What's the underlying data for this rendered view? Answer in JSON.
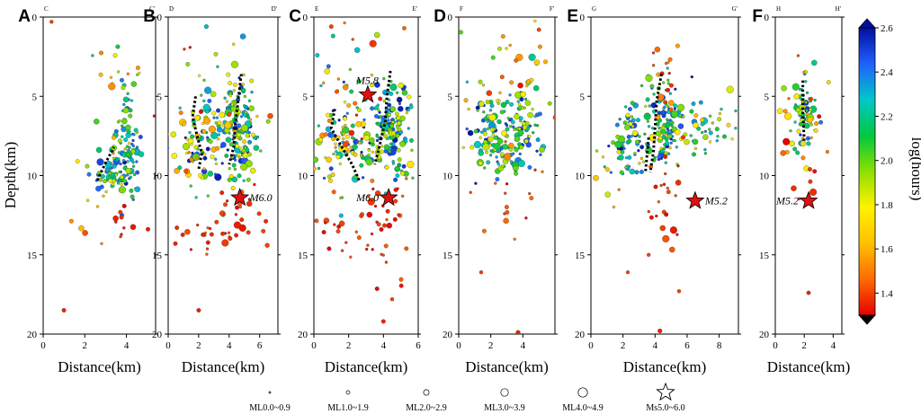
{
  "chart_data": {
    "type": "scatter",
    "description_units": "distance (km) vs depth (km), colour = log(hours)",
    "ylabel": "Depth(km)",
    "xlabel": "Distance(km)",
    "ylim": [
      0,
      20
    ],
    "yticks": [
      "0",
      "5",
      "10",
      "15",
      "20"
    ],
    "panels": [
      {
        "letter": "A",
        "start_label": "C",
        "end_label": "C'",
        "xlim": [
          0,
          5.4
        ],
        "xticks": [
          0,
          2,
          4
        ],
        "xtick_labels": [
          "0",
          "2",
          "4"
        ],
        "clusters": [
          {
            "cx": 4.0,
            "cy": 8.5,
            "sx": 0.35,
            "sy": 1.6,
            "n": 90,
            "c": [
              1.9,
              2.6
            ]
          },
          {
            "cx": 3.2,
            "cy": 10.0,
            "sx": 0.5,
            "sy": 0.7,
            "n": 45,
            "c": [
              1.8,
              2.5
            ]
          },
          {
            "cx": 4.0,
            "cy": 4.0,
            "sx": 0.8,
            "sy": 2.2,
            "n": 25,
            "c": [
              1.3,
              2.4
            ]
          },
          {
            "cx": 4.2,
            "cy": 13.2,
            "sx": 0.5,
            "sy": 0.6,
            "n": 10,
            "c": [
              1.3,
              1.4
            ]
          },
          {
            "cx": 2.0,
            "cy": 11.5,
            "sx": 0.9,
            "sy": 1.2,
            "n": 8,
            "c": [
              1.3,
              1.8
            ]
          }
        ],
        "extra_points": [
          [
            1.0,
            18.5,
            1.35,
            1.2
          ],
          [
            0.4,
            0.3,
            1.4,
            1.0
          ]
        ],
        "fault_traces": [
          [
            [
              2.6,
              10.3
            ],
            [
              3.0,
              9.2
            ],
            [
              3.4,
              8.2
            ]
          ]
        ],
        "stars": []
      },
      {
        "letter": "B",
        "start_label": "D",
        "end_label": "D'",
        "xlim": [
          0,
          7.2
        ],
        "xticks": [
          0,
          2,
          4,
          6
        ],
        "xtick_labels": [
          "0",
          "2",
          "4",
          "6"
        ],
        "clusters": [
          {
            "cx": 4.6,
            "cy": 7.2,
            "sx": 0.6,
            "sy": 1.6,
            "n": 140,
            "c": [
              1.7,
              2.6
            ]
          },
          {
            "cx": 1.8,
            "cy": 8.2,
            "sx": 0.9,
            "sy": 1.3,
            "n": 80,
            "c": [
              1.5,
              2.6
            ]
          },
          {
            "cx": 3.6,
            "cy": 6.5,
            "sx": 1.8,
            "sy": 2.8,
            "n": 60,
            "c": [
              1.3,
              2.4
            ]
          },
          {
            "cx": 4.5,
            "cy": 12.8,
            "sx": 0.8,
            "sy": 0.9,
            "n": 30,
            "c": [
              1.3,
              1.45
            ]
          },
          {
            "cx": 1.6,
            "cy": 13.8,
            "sx": 1.0,
            "sy": 0.8,
            "n": 14,
            "c": [
              1.3,
              1.45
            ]
          }
        ],
        "extra_points": [
          [
            2.0,
            18.5,
            1.35,
            1.2
          ],
          [
            2.5,
            0.6,
            2.3,
            1.3
          ],
          [
            6.5,
            14.4,
            1.4,
            1.4
          ]
        ],
        "fault_traces": [
          [
            [
              1.8,
              5.0
            ],
            [
              1.6,
              6.3
            ],
            [
              1.9,
              7.5
            ],
            [
              2.2,
              8.6
            ],
            [
              2.0,
              9.6
            ]
          ],
          [
            [
              4.8,
              3.6
            ],
            [
              4.6,
              5.2
            ],
            [
              4.4,
              6.8
            ],
            [
              4.3,
              8.2
            ],
            [
              4.0,
              9.3
            ]
          ]
        ],
        "stars": [
          {
            "x": 4.7,
            "y": 11.4,
            "label": "M6.0",
            "side": "right"
          }
        ]
      },
      {
        "letter": "C",
        "start_label": "E",
        "end_label": "E'",
        "xlim": [
          0,
          6.0
        ],
        "xticks": [
          0,
          2,
          4,
          6
        ],
        "xtick_labels": [
          "0",
          "2",
          "4",
          "6"
        ],
        "clusters": [
          {
            "cx": 4.3,
            "cy": 7.0,
            "sx": 0.6,
            "sy": 1.4,
            "n": 150,
            "c": [
              1.8,
              2.6
            ]
          },
          {
            "cx": 1.5,
            "cy": 8.0,
            "sx": 0.8,
            "sy": 1.3,
            "n": 90,
            "c": [
              1.5,
              2.6
            ]
          },
          {
            "cx": 3.0,
            "cy": 5.5,
            "sx": 1.7,
            "sy": 3.5,
            "n": 60,
            "c": [
              1.3,
              2.3
            ]
          },
          {
            "cx": 4.0,
            "cy": 12.8,
            "sx": 0.9,
            "sy": 1.6,
            "n": 40,
            "c": [
              1.3,
              1.45
            ]
          },
          {
            "cx": 1.2,
            "cy": 13.5,
            "sx": 0.8,
            "sy": 1.0,
            "n": 14,
            "c": [
              1.3,
              1.45
            ]
          }
        ],
        "extra_points": [
          [
            4.0,
            19.2,
            1.35,
            1.2
          ],
          [
            4.5,
            17.8,
            1.4,
            1.0
          ],
          [
            1.0,
            0.6,
            1.4,
            1.2
          ],
          [
            5.2,
            0.7,
            1.45,
            1.1
          ]
        ],
        "fault_traces": [
          [
            [
              1.2,
              5.8
            ],
            [
              1.0,
              7.0
            ],
            [
              1.6,
              8.2
            ],
            [
              2.2,
              9.3
            ],
            [
              2.6,
              10.3
            ]
          ],
          [
            [
              4.4,
              3.4
            ],
            [
              4.2,
              5.0
            ],
            [
              4.1,
              6.6
            ],
            [
              3.8,
              8.0
            ],
            [
              3.5,
              9.3
            ]
          ]
        ],
        "stars": [
          {
            "x": 3.1,
            "y": 4.9,
            "label": "M5.8",
            "side": "above"
          },
          {
            "x": 4.3,
            "y": 11.4,
            "label": "M6.0",
            "side": "left"
          }
        ]
      },
      {
        "letter": "D",
        "start_label": "F",
        "end_label": "F'",
        "xlim": [
          0,
          6.0
        ],
        "xticks": [
          0,
          2,
          4
        ],
        "xtick_labels": [
          "0",
          "2",
          "4"
        ],
        "clusters": [
          {
            "cx": 1.8,
            "cy": 7.0,
            "sx": 0.5,
            "sy": 1.4,
            "n": 80,
            "c": [
              1.8,
              2.6
            ]
          },
          {
            "cx": 4.0,
            "cy": 6.8,
            "sx": 0.6,
            "sy": 1.3,
            "n": 80,
            "c": [
              1.8,
              2.6
            ]
          },
          {
            "cx": 2.9,
            "cy": 8.4,
            "sx": 0.5,
            "sy": 0.7,
            "n": 40,
            "c": [
              1.8,
              2.5
            ]
          },
          {
            "cx": 3.0,
            "cy": 4.0,
            "sx": 1.8,
            "sy": 3.0,
            "n": 50,
            "c": [
              1.3,
              2.3
            ]
          },
          {
            "cx": 3.5,
            "cy": 12.0,
            "sx": 1.5,
            "sy": 1.5,
            "n": 18,
            "c": [
              1.3,
              1.5
            ]
          }
        ],
        "extra_points": [
          [
            1.4,
            16.1,
            1.4,
            1.0
          ],
          [
            3.7,
            19.9,
            1.35,
            1.3
          ],
          [
            5.0,
            0.8,
            1.4,
            1.1
          ]
        ],
        "fault_traces": [],
        "stars": []
      },
      {
        "letter": "E",
        "start_label": "G",
        "end_label": "G'",
        "xlim": [
          0,
          9.2
        ],
        "xticks": [
          0,
          2,
          4,
          6,
          8
        ],
        "xtick_labels": [
          "0",
          "2",
          "4",
          "6",
          "8"
        ],
        "clusters": [
          {
            "cx": 4.6,
            "cy": 6.8,
            "sx": 0.6,
            "sy": 1.4,
            "n": 100,
            "c": [
              1.9,
              2.6
            ]
          },
          {
            "cx": 2.5,
            "cy": 7.6,
            "sx": 0.6,
            "sy": 1.4,
            "n": 60,
            "c": [
              1.8,
              2.6
            ]
          },
          {
            "cx": 6.5,
            "cy": 7.0,
            "sx": 1.2,
            "sy": 1.0,
            "n": 60,
            "c": [
              1.6,
              2.4
            ]
          },
          {
            "cx": 4.8,
            "cy": 3.5,
            "sx": 0.6,
            "sy": 1.5,
            "n": 18,
            "c": [
              1.3,
              1.6
            ]
          },
          {
            "cx": 4.6,
            "cy": 12.0,
            "sx": 0.9,
            "sy": 1.3,
            "n": 22,
            "c": [
              1.3,
              1.45
            ]
          },
          {
            "cx": 1.5,
            "cy": 9.5,
            "sx": 1.0,
            "sy": 1.0,
            "n": 14,
            "c": [
              1.4,
              2.2
            ]
          }
        ],
        "extra_points": [
          [
            4.3,
            19.8,
            1.35,
            1.3
          ],
          [
            5.5,
            17.3,
            1.4,
            1.0
          ],
          [
            2.3,
            16.1,
            1.4,
            0.9
          ],
          [
            3.6,
            15.0,
            1.4,
            1.0
          ]
        ],
        "fault_traces": [
          [
            [
              3.6,
              7.6
            ],
            [
              3.5,
              8.7
            ],
            [
              3.4,
              9.8
            ]
          ],
          [
            [
              4.4,
              3.6
            ],
            [
              4.1,
              5.3
            ],
            [
              4.0,
              7.0
            ],
            [
              3.9,
              8.5
            ],
            [
              3.7,
              9.8
            ]
          ]
        ],
        "stars": [
          {
            "x": 6.5,
            "y": 11.6,
            "label": "M5.2",
            "side": "right"
          }
        ]
      },
      {
        "letter": "F",
        "start_label": "H",
        "end_label": "H'",
        "xlim": [
          0,
          4.6
        ],
        "xticks": [
          0,
          2,
          4
        ],
        "xtick_labels": [
          "0",
          "2",
          "4"
        ],
        "clusters": [
          {
            "cx": 1.9,
            "cy": 6.2,
            "sx": 0.35,
            "sy": 1.3,
            "n": 60,
            "c": [
              1.8,
              2.6
            ]
          },
          {
            "cx": 1.8,
            "cy": 6.3,
            "sx": 1.1,
            "sy": 1.3,
            "n": 35,
            "c": [
              1.3,
              2.2
            ]
          },
          {
            "cx": 2.2,
            "cy": 10.6,
            "sx": 0.4,
            "sy": 0.7,
            "n": 6,
            "c": [
              1.3,
              1.4
            ]
          }
        ],
        "extra_points": [
          [
            2.3,
            17.4,
            1.35,
            1.1
          ],
          [
            3.6,
            8.5,
            1.5,
            0.9
          ]
        ],
        "fault_traces": [
          [
            [
              1.9,
              4.0
            ],
            [
              1.9,
              6.0
            ],
            [
              2.0,
              7.8
            ]
          ]
        ],
        "stars": [
          {
            "x": 2.3,
            "y": 11.6,
            "label": "M5.2",
            "side": "left"
          }
        ]
      }
    ],
    "colorbar": {
      "title": "log(hours)",
      "range": [
        1.3,
        2.6
      ],
      "ticks": [
        "1.4",
        "1.6",
        "1.8",
        "2.0",
        "2.2",
        "2.4",
        "2.6"
      ],
      "colors": [
        "#e60000",
        "#ff6a00",
        "#ffc000",
        "#fff200",
        "#8ee000",
        "#00c840",
        "#00c8c8",
        "#2060ff",
        "#0010a0"
      ]
    },
    "legend": [
      {
        "label": "ML0.0~0.9",
        "symbol": "circle",
        "magnitude": 0
      },
      {
        "label": "ML1.0~1.9",
        "symbol": "circle",
        "magnitude": 1
      },
      {
        "label": "ML2.0~2.9",
        "symbol": "circle",
        "magnitude": 2
      },
      {
        "label": "ML3.0~3.9",
        "symbol": "circle",
        "magnitude": 3
      },
      {
        "label": "ML4.0~4.9",
        "symbol": "circle",
        "magnitude": 4
      },
      {
        "label": "Ms5.0~6.0",
        "symbol": "star",
        "magnitude": 5
      }
    ],
    "star_color": "#e01010"
  }
}
